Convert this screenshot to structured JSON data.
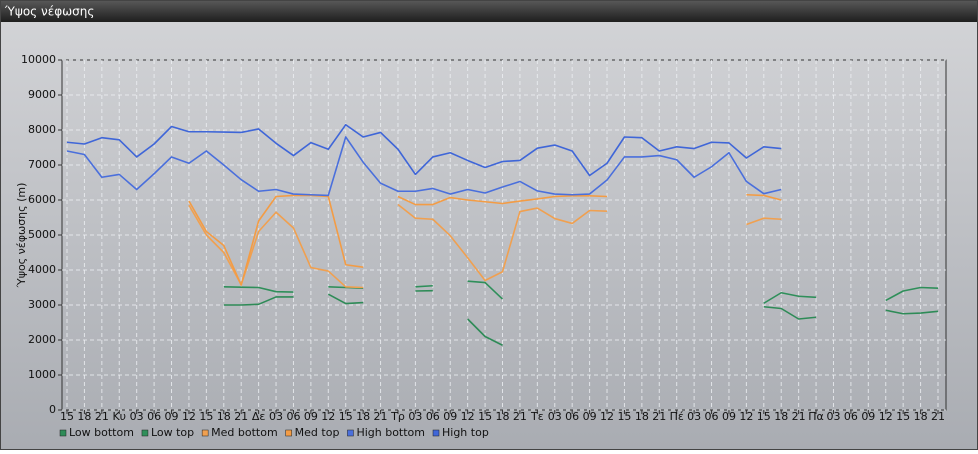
{
  "chart_data": {
    "type": "line",
    "title": "Ύψος νέφωσης",
    "ylabel": "Ύψος νέφωσης (m)",
    "categories": [
      "15",
      "18",
      "21",
      "Κυ",
      "03",
      "06",
      "09",
      "12",
      "15",
      "18",
      "21",
      "Δε",
      "03",
      "06",
      "09",
      "12",
      "15",
      "18",
      "21",
      "Τρ",
      "03",
      "06",
      "09",
      "12",
      "15",
      "18",
      "21",
      "Τε",
      "03",
      "06",
      "09",
      "12",
      "15",
      "18",
      "21",
      "Πέ",
      "03",
      "06",
      "09",
      "12",
      "15",
      "18",
      "21",
      "Πα",
      "03",
      "06",
      "09",
      "12",
      "15",
      "18",
      "21"
    ],
    "ylim": [
      0,
      10000
    ],
    "yticks": [
      0,
      1000,
      2000,
      3000,
      4000,
      5000,
      6000,
      7000,
      8000,
      9000,
      10000
    ],
    "grid": true,
    "legend": "bottom",
    "series": [
      {
        "name": "Low bottom",
        "color": "#2e8b57",
        "values": [
          null,
          null,
          null,
          null,
          null,
          null,
          null,
          null,
          null,
          3000,
          3000,
          3020,
          3230,
          3230,
          null,
          3310,
          3040,
          3070,
          null,
          null,
          3400,
          3410,
          null,
          2600,
          2100,
          1850,
          null,
          null,
          null,
          null,
          null,
          null,
          null,
          null,
          null,
          null,
          null,
          null,
          null,
          null,
          2950,
          2900,
          2600,
          2650,
          null,
          null,
          null,
          2850,
          2750,
          2770,
          2820
        ]
      },
      {
        "name": "Low top",
        "color": "#2f8f5a",
        "values": [
          null,
          null,
          null,
          null,
          null,
          null,
          null,
          null,
          null,
          3520,
          3510,
          3500,
          3380,
          3370,
          null,
          3520,
          3500,
          3480,
          null,
          null,
          3520,
          3550,
          null,
          3680,
          3640,
          3170,
          null,
          null,
          null,
          null,
          null,
          null,
          null,
          null,
          null,
          null,
          null,
          null,
          null,
          null,
          3050,
          3350,
          3250,
          3220,
          null,
          null,
          null,
          3130,
          3400,
          3500,
          3480
        ]
      },
      {
        "name": "Med bottom",
        "color": "#f0a050",
        "values": [
          null,
          null,
          null,
          null,
          null,
          null,
          null,
          5850,
          5000,
          4500,
          3580,
          5100,
          5650,
          5200,
          4070,
          3970,
          3520,
          3500,
          null,
          5870,
          5480,
          5450,
          4980,
          4350,
          3700,
          3950,
          5670,
          5770,
          5470,
          5330,
          5700,
          5680,
          null,
          null,
          null,
          null,
          null,
          null,
          null,
          5300,
          5480,
          5450,
          null,
          null,
          null,
          null,
          null,
          null,
          null,
          null,
          null
        ]
      },
      {
        "name": "Med top",
        "color": "#f39c45",
        "values": [
          null,
          null,
          null,
          null,
          null,
          null,
          null,
          5970,
          5100,
          4700,
          3570,
          5400,
          6100,
          6130,
          6130,
          6100,
          4150,
          4080,
          null,
          6100,
          5870,
          5870,
          6070,
          6000,
          5950,
          5900,
          5970,
          6030,
          6100,
          6120,
          6120,
          6100,
          null,
          null,
          null,
          null,
          null,
          null,
          null,
          6150,
          6130,
          6000,
          null,
          null,
          null,
          null,
          null,
          null,
          null,
          null,
          null
        ]
      },
      {
        "name": "High bottom",
        "color": "#4a6fdc",
        "values": [
          7400,
          7300,
          6650,
          6730,
          6300,
          6750,
          7230,
          7050,
          7400,
          7000,
          6580,
          6250,
          6300,
          6170,
          6150,
          6130,
          7800,
          7080,
          6480,
          6250,
          6250,
          6330,
          6170,
          6300,
          6200,
          6370,
          6530,
          6260,
          6170,
          6150,
          6170,
          6570,
          7230,
          7230,
          7270,
          7150,
          6650,
          6950,
          7350,
          6530,
          6180,
          6300,
          null,
          null,
          null,
          null,
          null,
          null,
          null,
          null,
          null
        ]
      },
      {
        "name": "High top",
        "color": "#3f66d8",
        "values": [
          7650,
          7600,
          7780,
          7720,
          7230,
          7600,
          8100,
          7950,
          7950,
          7940,
          7930,
          8030,
          7620,
          7270,
          7640,
          7450,
          8150,
          7800,
          7930,
          7450,
          6730,
          7230,
          7350,
          7130,
          6930,
          7100,
          7130,
          7480,
          7570,
          7400,
          6700,
          7050,
          7800,
          7780,
          7400,
          7520,
          7470,
          7650,
          7630,
          7200,
          7520,
          7470,
          null,
          null,
          null,
          null,
          null,
          null,
          null,
          null,
          null
        ]
      }
    ]
  }
}
